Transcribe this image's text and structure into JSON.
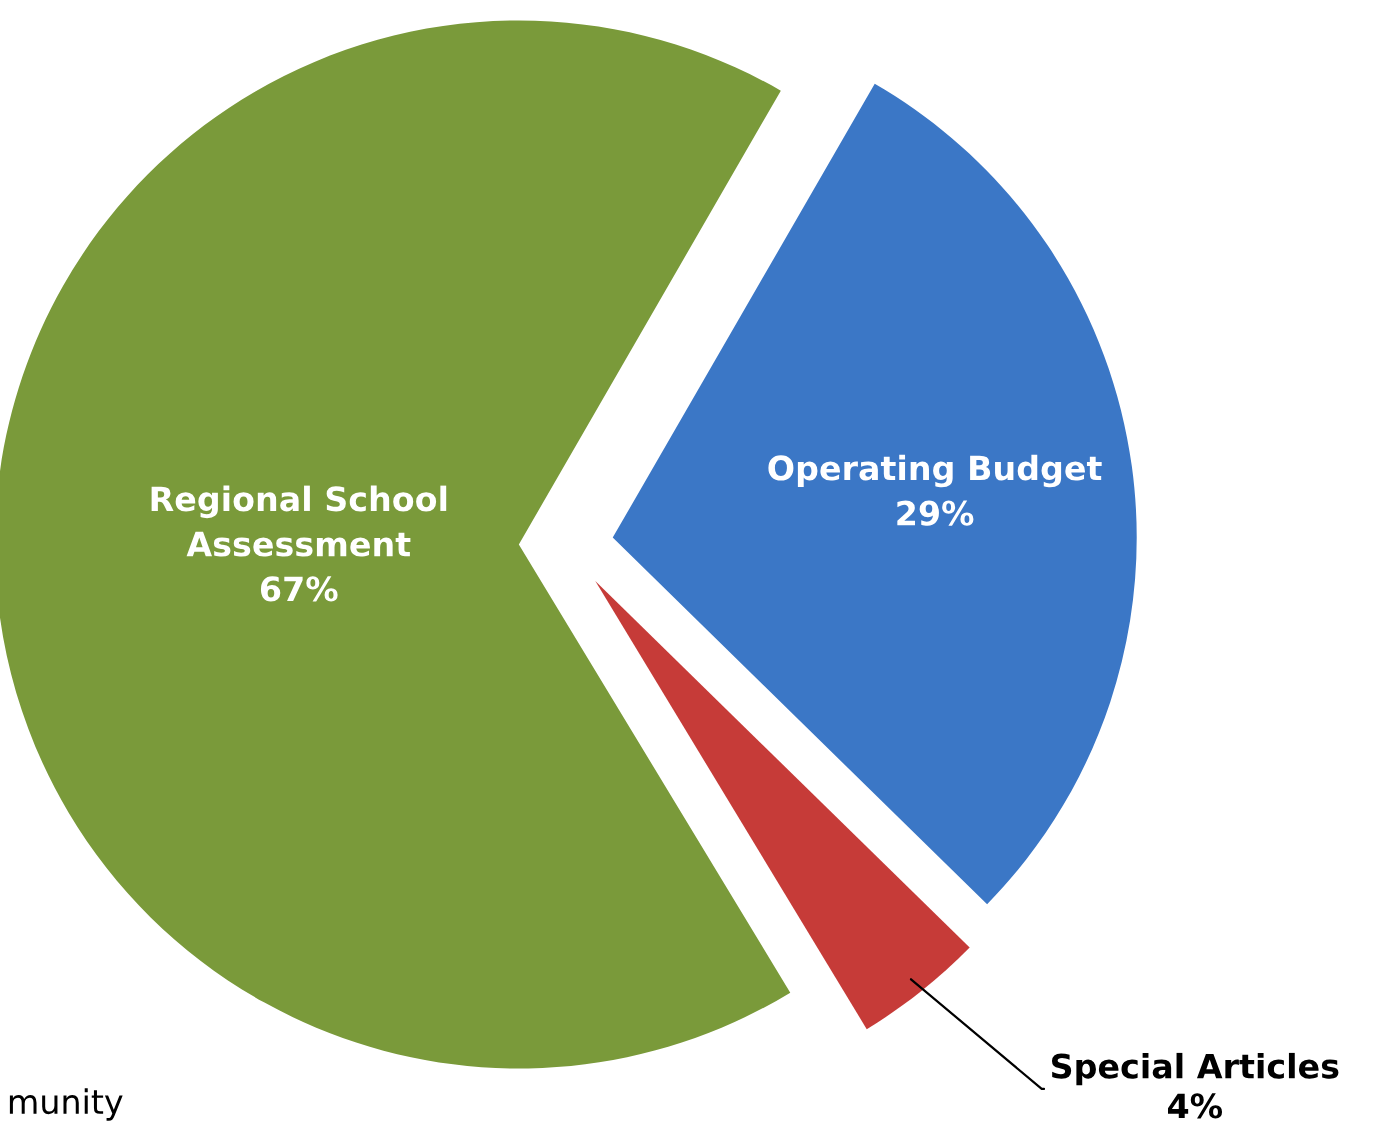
{
  "chart_data": {
    "type": "pie",
    "categories": [
      "Operating Budget",
      "Special Articles",
      "Regional School Assessment"
    ],
    "values": [
      29,
      4,
      67
    ],
    "colors": [
      "#3b77c6",
      "#c63b38",
      "#7a9a3a"
    ],
    "value_labels": [
      "29%",
      "4%",
      "67%"
    ],
    "legend": false,
    "annotations": [
      "munity"
    ]
  }
}
